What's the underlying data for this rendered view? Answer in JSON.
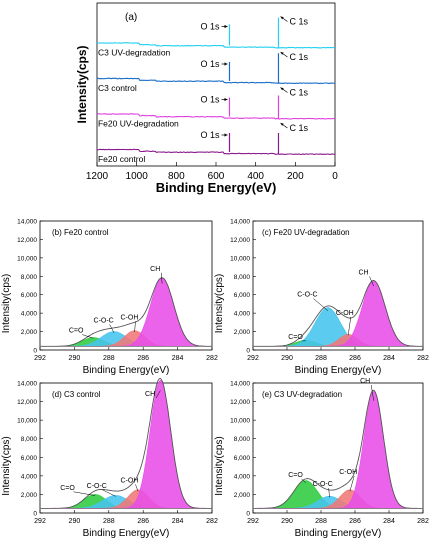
{
  "chart_data": [
    {
      "type": "line",
      "panel_label": "(a)",
      "xlabel": "Binding Energy(eV)",
      "ylabel": "Intensity(cps)",
      "xlim": [
        1200,
        0
      ],
      "x_ticks": [
        "1200",
        "1000",
        "800",
        "600",
        "400",
        "200",
        "0"
      ],
      "series": [
        {
          "name": "C3 UV-degradation",
          "color": "#22d0f0",
          "level": 3,
          "c_peak": 0.72,
          "o_peak": 0.55,
          "o_label": "O 1s",
          "c_label": "C 1s"
        },
        {
          "name": "C3 control",
          "color": "#1a6ec8",
          "level": 2,
          "c_peak": 0.72,
          "o_peak": 0.5,
          "o_label": "O 1s",
          "c_label": "C 1s"
        },
        {
          "name": "Fe20 UV-degradation",
          "color": "#e040e0",
          "level": 1,
          "c_peak": 0.55,
          "o_peak": 0.5,
          "o_label": "O 1s",
          "c_label": "C 1s"
        },
        {
          "name": "Fe20 control",
          "color": "#8a1a8a",
          "level": 0,
          "c_peak": 0.5,
          "o_peak": 0.5,
          "o_label": "O 1s",
          "c_label": "C 1s"
        }
      ]
    },
    {
      "type": "area",
      "panel_label": "(b) Fe20 control",
      "xlabel": "Binding Energy(eV)",
      "ylabel": "Intensity(cps)",
      "xlim": [
        292,
        282
      ],
      "ylim": [
        0,
        14000
      ],
      "x_ticks": [
        "292",
        "290",
        "288",
        "286",
        "284",
        "282"
      ],
      "y_ticks": [
        "0",
        "2,000",
        "4,000",
        "6,000",
        "8,000",
        "10,000",
        "12,000",
        "14,000"
      ],
      "baseline": 400,
      "peaks": [
        {
          "label": "C=O",
          "center": 288.9,
          "height": 950,
          "sigma": 0.65,
          "color": "#2ecc40"
        },
        {
          "label": "C-O-C",
          "center": 287.7,
          "height": 1600,
          "sigma": 0.75,
          "color": "#45c4ee"
        },
        {
          "label": "C-OH",
          "center": 286.5,
          "height": 1700,
          "sigma": 0.6,
          "color": "#f07878"
        },
        {
          "label": "CH",
          "center": 284.9,
          "height": 7400,
          "sigma": 0.68,
          "color": "#e84de8"
        }
      ],
      "label_points": [
        [
          289.9,
          1900
        ],
        [
          288.3,
          3000
        ],
        [
          286.8,
          3300
        ],
        [
          285.3,
          8600
        ]
      ]
    },
    {
      "type": "area",
      "panel_label": "(c) Fe20 UV-degradation",
      "xlabel": "Binding Energy(eV)",
      "ylabel": "Intensity(cps)",
      "xlim": [
        292,
        282
      ],
      "ylim": [
        0,
        14000
      ],
      "x_ticks": [
        "292",
        "290",
        "288",
        "286",
        "284",
        "282"
      ],
      "y_ticks": [
        "0",
        "2,000",
        "4,000",
        "6,000",
        "8,000",
        "10,000",
        "12,000",
        "14,000"
      ],
      "baseline": 400,
      "peaks": [
        {
          "label": "C=O",
          "center": 288.9,
          "height": 650,
          "sigma": 0.6,
          "color": "#2ecc40"
        },
        {
          "label": "C-O-C",
          "center": 287.6,
          "height": 4200,
          "sigma": 0.75,
          "color": "#45c4ee"
        },
        {
          "label": "C-OH",
          "center": 286.4,
          "height": 1300,
          "sigma": 0.55,
          "color": "#f07878"
        },
        {
          "label": "CH",
          "center": 284.9,
          "height": 7100,
          "sigma": 0.68,
          "color": "#e84de8"
        }
      ],
      "label_points": [
        [
          289.5,
          1200
        ],
        [
          288.8,
          5800
        ],
        [
          286.6,
          3800
        ],
        [
          285.5,
          8200
        ]
      ]
    },
    {
      "type": "area",
      "panel_label": "(d) C3 control",
      "xlabel": "Binding Energy(eV)",
      "ylabel": "Intensity(cps)",
      "xlim": [
        292,
        282
      ],
      "ylim": [
        0,
        14000
      ],
      "x_ticks": [
        "292",
        "290",
        "288",
        "286",
        "284",
        "282"
      ],
      "y_ticks": [
        "0",
        "2,000",
        "4,000",
        "6,000",
        "8,000",
        "10,000",
        "12,000",
        "14,000"
      ],
      "baseline": 500,
      "peaks": [
        {
          "label": "C=O",
          "center": 288.8,
          "height": 1500,
          "sigma": 0.65,
          "color": "#2ecc40"
        },
        {
          "label": "C-O-C",
          "center": 287.6,
          "height": 1400,
          "sigma": 0.75,
          "color": "#45c4ee"
        },
        {
          "label": "C-OH",
          "center": 286.3,
          "height": 2000,
          "sigma": 0.6,
          "color": "#f07878"
        },
        {
          "label": "CH",
          "center": 285.0,
          "height": 13800,
          "sigma": 0.6,
          "color": "#e84de8"
        }
      ],
      "label_points": [
        [
          290.4,
          2500
        ],
        [
          288.7,
          2700
        ],
        [
          286.8,
          3300
        ],
        [
          285.6,
          12600
        ]
      ]
    },
    {
      "type": "area",
      "panel_label": "(e) C3 UV-degradation",
      "xlabel": "Binding Energy(eV)",
      "ylabel": "Intensity(cps)",
      "xlim": [
        292,
        282
      ],
      "ylim": [
        0,
        14000
      ],
      "x_ticks": [
        "292",
        "290",
        "288",
        "286",
        "284",
        "282"
      ],
      "y_ticks": [
        "0",
        "2,000",
        "4,000",
        "6,000",
        "8,000",
        "10,000",
        "12,000",
        "14,000"
      ],
      "baseline": 500,
      "peaks": [
        {
          "label": "C=O",
          "center": 288.9,
          "height": 3000,
          "sigma": 0.7,
          "color": "#2ecc40"
        },
        {
          "label": "C-O-C",
          "center": 287.5,
          "height": 1300,
          "sigma": 0.7,
          "color": "#45c4ee"
        },
        {
          "label": "C-OH",
          "center": 286.3,
          "height": 2000,
          "sigma": 0.6,
          "color": "#f07878"
        },
        {
          "label": "CH",
          "center": 284.9,
          "height": 12600,
          "sigma": 0.58,
          "color": "#e84de8"
        }
      ],
      "label_points": [
        [
          289.5,
          3900
        ],
        [
          287.9,
          2900
        ],
        [
          286.4,
          4200
        ],
        [
          285.4,
          14000
        ]
      ]
    }
  ]
}
